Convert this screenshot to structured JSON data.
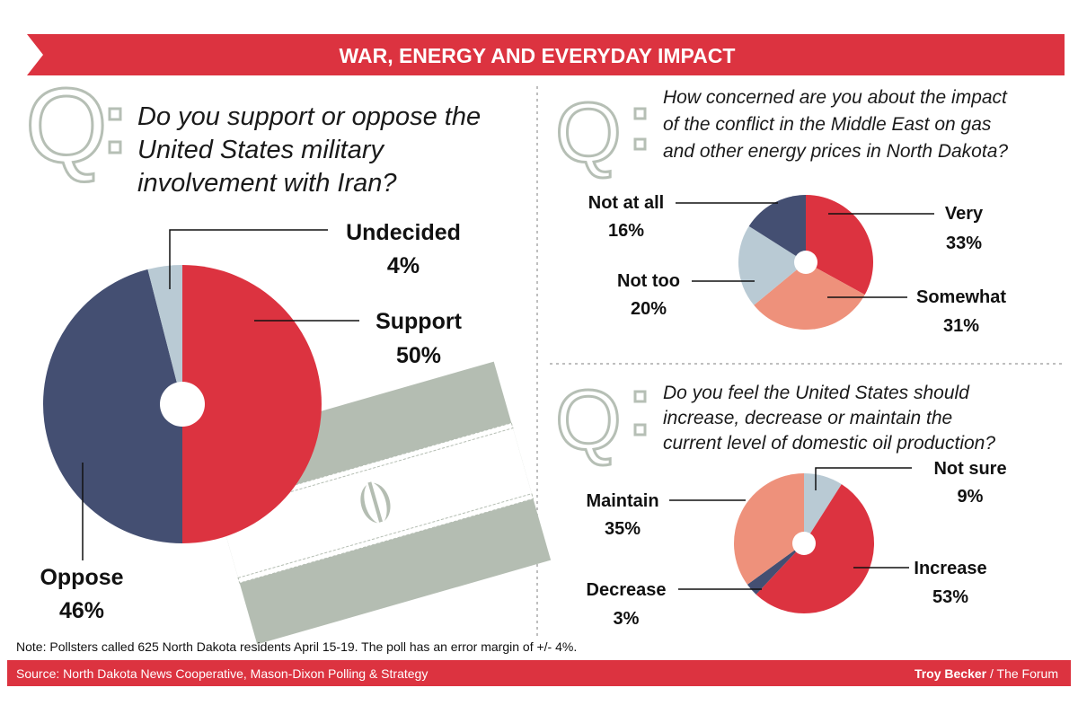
{
  "header": {
    "title": "WAR, ENERGY AND EVERYDAY IMPACT"
  },
  "colors": {
    "red": "#dc3340",
    "navy": "#444f72",
    "light": "#b9cad4",
    "salmon": "#ee917b",
    "qgray": "#b6bfb5",
    "flag": "#b4bdb2"
  },
  "footer": {
    "note": "Note: Pollsters called 625 North Dakota residents April 15-19. The poll has an error margin of +/- 4%.",
    "source": "Source: North Dakota News Cooperative, Mason-Dixon Polling & Strategy",
    "credit_name": "Troy Becker",
    "credit_org": " / The Forum"
  },
  "chart_data": [
    {
      "type": "pie",
      "title": [
        "Do you support or oppose the",
        "United States military",
        "involvement with Iran?"
      ],
      "categories": [
        "Support",
        "Oppose",
        "Undecided"
      ],
      "values": [
        50,
        46,
        4
      ],
      "labels": [
        "50%",
        "46%",
        "4%"
      ],
      "colors": [
        "#dc3340",
        "#444f72",
        "#b9cad4"
      ]
    },
    {
      "type": "pie",
      "title": [
        "How concerned are you about the impact",
        "of the conflict in the Middle East on gas",
        "and other energy prices in North Dakota?"
      ],
      "categories": [
        "Very",
        "Somewhat",
        "Not too",
        "Not at all"
      ],
      "values": [
        33,
        31,
        20,
        16
      ],
      "labels": [
        "33%",
        "31%",
        "20%",
        "16%"
      ],
      "colors": [
        "#dc3340",
        "#ee917b",
        "#b9cad4",
        "#444f72"
      ]
    },
    {
      "type": "pie",
      "title": [
        "Do you feel the United States should",
        "increase, decrease or maintain the",
        "current level of domestic oil production?"
      ],
      "categories": [
        "Not sure",
        "Increase",
        "Decrease",
        "Maintain"
      ],
      "values": [
        9,
        53,
        3,
        35
      ],
      "labels": [
        "9%",
        "53%",
        "3%",
        "35%"
      ],
      "colors": [
        "#b9cad4",
        "#dc3340",
        "#444f72",
        "#ee917b"
      ]
    }
  ]
}
